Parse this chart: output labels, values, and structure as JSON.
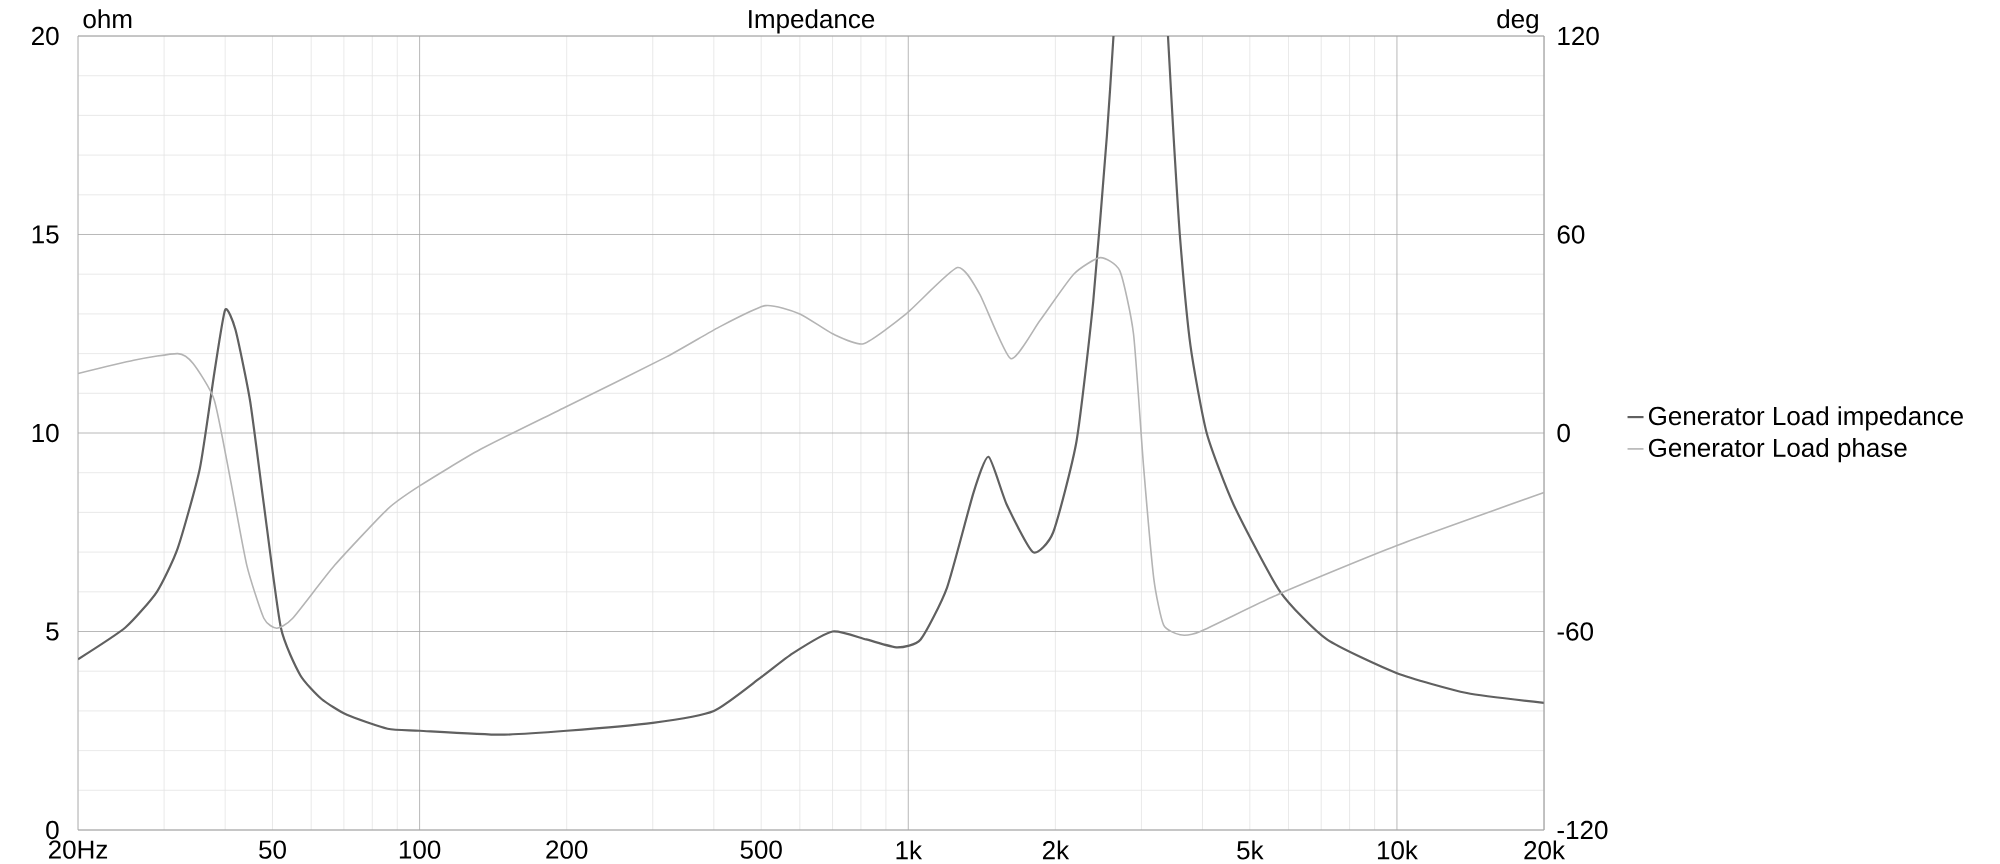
{
  "chart_data": {
    "type": "line",
    "title": "Impedance",
    "ylabel": "ohm",
    "y2label": "deg",
    "log": "x",
    "grid": true,
    "legend": "right",
    "xlim": [
      20,
      20000
    ],
    "ylim": [
      0,
      20
    ],
    "y2lim": [
      -120,
      120
    ],
    "xticks": [
      {
        "value": 20,
        "label": "20Hz"
      },
      50,
      100,
      200,
      500,
      {
        "value": 1000,
        "label": "1k"
      },
      {
        "value": 2000,
        "label": "2k"
      },
      {
        "value": 5000,
        "label": "5k"
      },
      {
        "value": 10000,
        "label": "10k"
      },
      {
        "value": 20000,
        "label": "20k"
      }
    ],
    "yticks": [
      0,
      5,
      10,
      15,
      20
    ],
    "y2ticks": [
      -120,
      -60,
      0,
      60,
      120
    ],
    "series": [
      {
        "name": "Generator Load impedance",
        "color": "#606060",
        "x": [
          20,
          25,
          29,
          32,
          35.5,
          38,
          40,
          42,
          45,
          48,
          52,
          57,
          63,
          71,
          86,
          100,
          146,
          200,
          300,
          400,
          500,
          580,
          700,
          820,
          950,
          1060,
          1200,
          1360,
          1460,
          1590,
          1800,
          1980,
          2210,
          2390,
          2550,
          2630,
          3000,
          3400,
          3490,
          3600,
          3780,
          4080,
          4630,
          5770,
          7190,
          10000,
          13900,
          20000
        ],
        "values": [
          4.3,
          5.1,
          6.0,
          7.1,
          9.1,
          11.5,
          13.1,
          12.6,
          10.8,
          8.2,
          5.1,
          3.9,
          3.3,
          2.9,
          2.55,
          2.5,
          2.4,
          2.5,
          2.7,
          3.0,
          3.85,
          4.45,
          5.0,
          4.8,
          4.6,
          4.8,
          6.1,
          8.5,
          9.4,
          8.2,
          7.0,
          7.5,
          9.8,
          13.3,
          17.5,
          20,
          null,
          20,
          17.5,
          14.9,
          12.2,
          10.0,
          8.2,
          6.0,
          4.8,
          3.95,
          3.45,
          3.2
        ]
      },
      {
        "name": "Generator Load phase",
        "color": "#b4b4b4",
        "axis": "y2",
        "x": [
          20,
          26,
          32,
          34.4,
          38,
          41,
          44.3,
          48,
          51,
          55,
          67,
          86,
          100,
          133,
          200,
          320,
          410,
          510,
          600,
          700,
          810,
          990,
          1260,
          1400,
          1620,
          1860,
          2180,
          2470,
          2710,
          2890,
          3030,
          3180,
          3330,
          3600,
          3960,
          5770,
          10000,
          20000
        ],
        "values": [
          18,
          22,
          24,
          21,
          10,
          -14,
          -40,
          -56,
          -59,
          -56,
          -40,
          -23,
          -16,
          -5,
          8,
          23,
          32,
          38.5,
          36,
          30,
          27,
          36,
          50,
          42,
          22.5,
          34,
          48,
          53,
          49,
          30,
          -10,
          -44,
          -58,
          -61,
          -60,
          -48.5,
          -34,
          -18
        ]
      }
    ]
  }
}
